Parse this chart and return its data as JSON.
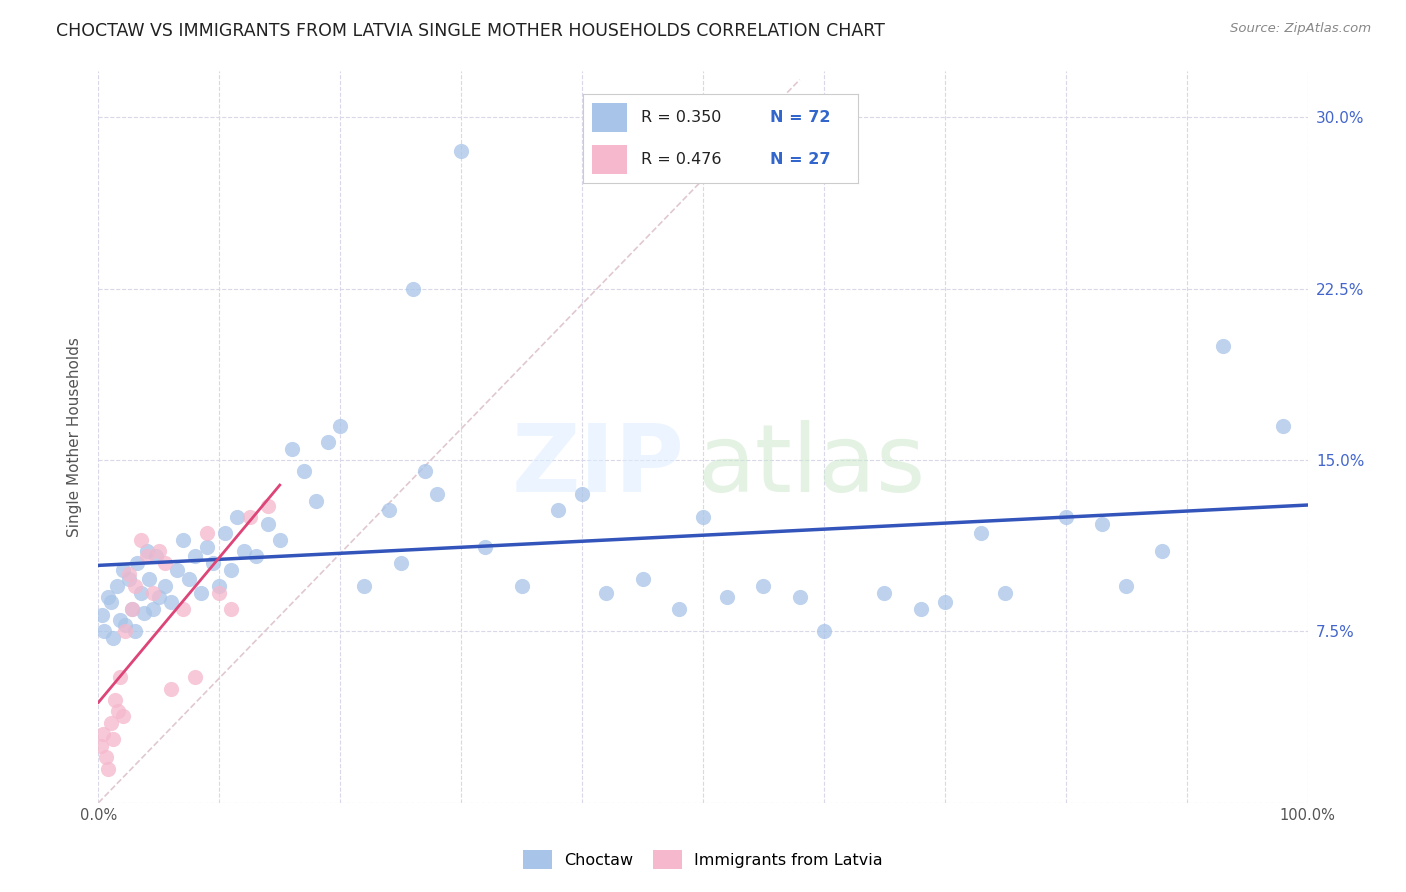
{
  "title": "CHOCTAW VS IMMIGRANTS FROM LATVIA SINGLE MOTHER HOUSEHOLDS CORRELATION CHART",
  "source": "Source: ZipAtlas.com",
  "ylabel": "Single Mother Households",
  "choctaw_color": "#a8c4e8",
  "latvia_color": "#f5b8cc",
  "choctaw_R": 0.35,
  "choctaw_N": 72,
  "latvia_R": 0.476,
  "latvia_N": 27,
  "choctaw_line_color": "#3355bb",
  "latvia_line_color": "#dd4477",
  "diagonal_color": "#e0c8d0",
  "xlim": [
    0,
    100
  ],
  "ylim": [
    0,
    32
  ],
  "background_color": "#ffffff",
  "grid_color": "#d8d8e8",
  "choctaw_x": [
    0.3,
    0.5,
    0.8,
    1.0,
    1.2,
    1.5,
    1.8,
    2.0,
    2.2,
    2.5,
    2.8,
    3.0,
    3.2,
    3.5,
    3.8,
    4.0,
    4.2,
    4.5,
    4.8,
    5.0,
    5.5,
    6.0,
    6.5,
    7.0,
    7.5,
    8.0,
    8.5,
    9.0,
    9.5,
    10.0,
    10.5,
    11.0,
    11.5,
    12.0,
    13.0,
    14.0,
    15.0,
    16.0,
    17.0,
    18.0,
    19.0,
    20.0,
    22.0,
    24.0,
    25.0,
    26.0,
    27.0,
    28.0,
    30.0,
    32.0,
    35.0,
    38.0,
    40.0,
    42.0,
    45.0,
    48.0,
    50.0,
    52.0,
    55.0,
    58.0,
    60.0,
    65.0,
    68.0,
    70.0,
    73.0,
    75.0,
    80.0,
    83.0,
    85.0,
    88.0,
    93.0,
    98.0
  ],
  "choctaw_y": [
    8.2,
    7.5,
    9.0,
    8.8,
    7.2,
    9.5,
    8.0,
    10.2,
    7.8,
    9.8,
    8.5,
    7.5,
    10.5,
    9.2,
    8.3,
    11.0,
    9.8,
    8.5,
    10.8,
    9.0,
    9.5,
    8.8,
    10.2,
    11.5,
    9.8,
    10.8,
    9.2,
    11.2,
    10.5,
    9.5,
    11.8,
    10.2,
    12.5,
    11.0,
    10.8,
    12.2,
    11.5,
    15.5,
    14.5,
    13.2,
    15.8,
    16.5,
    9.5,
    12.8,
    10.5,
    22.5,
    14.5,
    13.5,
    28.5,
    11.2,
    9.5,
    12.8,
    13.5,
    9.2,
    9.8,
    8.5,
    12.5,
    9.0,
    9.5,
    9.0,
    7.5,
    9.2,
    8.5,
    8.8,
    11.8,
    9.2,
    12.5,
    12.2,
    9.5,
    11.0,
    20.0,
    16.5
  ],
  "latvia_x": [
    0.2,
    0.4,
    0.6,
    0.8,
    1.0,
    1.2,
    1.4,
    1.6,
    1.8,
    2.0,
    2.2,
    2.5,
    2.8,
    3.0,
    3.5,
    4.0,
    4.5,
    5.0,
    5.5,
    6.0,
    7.0,
    8.0,
    9.0,
    10.0,
    11.0,
    12.5,
    14.0
  ],
  "latvia_y": [
    2.5,
    3.0,
    2.0,
    1.5,
    3.5,
    2.8,
    4.5,
    4.0,
    5.5,
    3.8,
    7.5,
    10.0,
    8.5,
    9.5,
    11.5,
    10.8,
    9.2,
    11.0,
    10.5,
    5.0,
    8.5,
    5.5,
    11.8,
    9.2,
    8.5,
    12.5,
    13.0
  ]
}
